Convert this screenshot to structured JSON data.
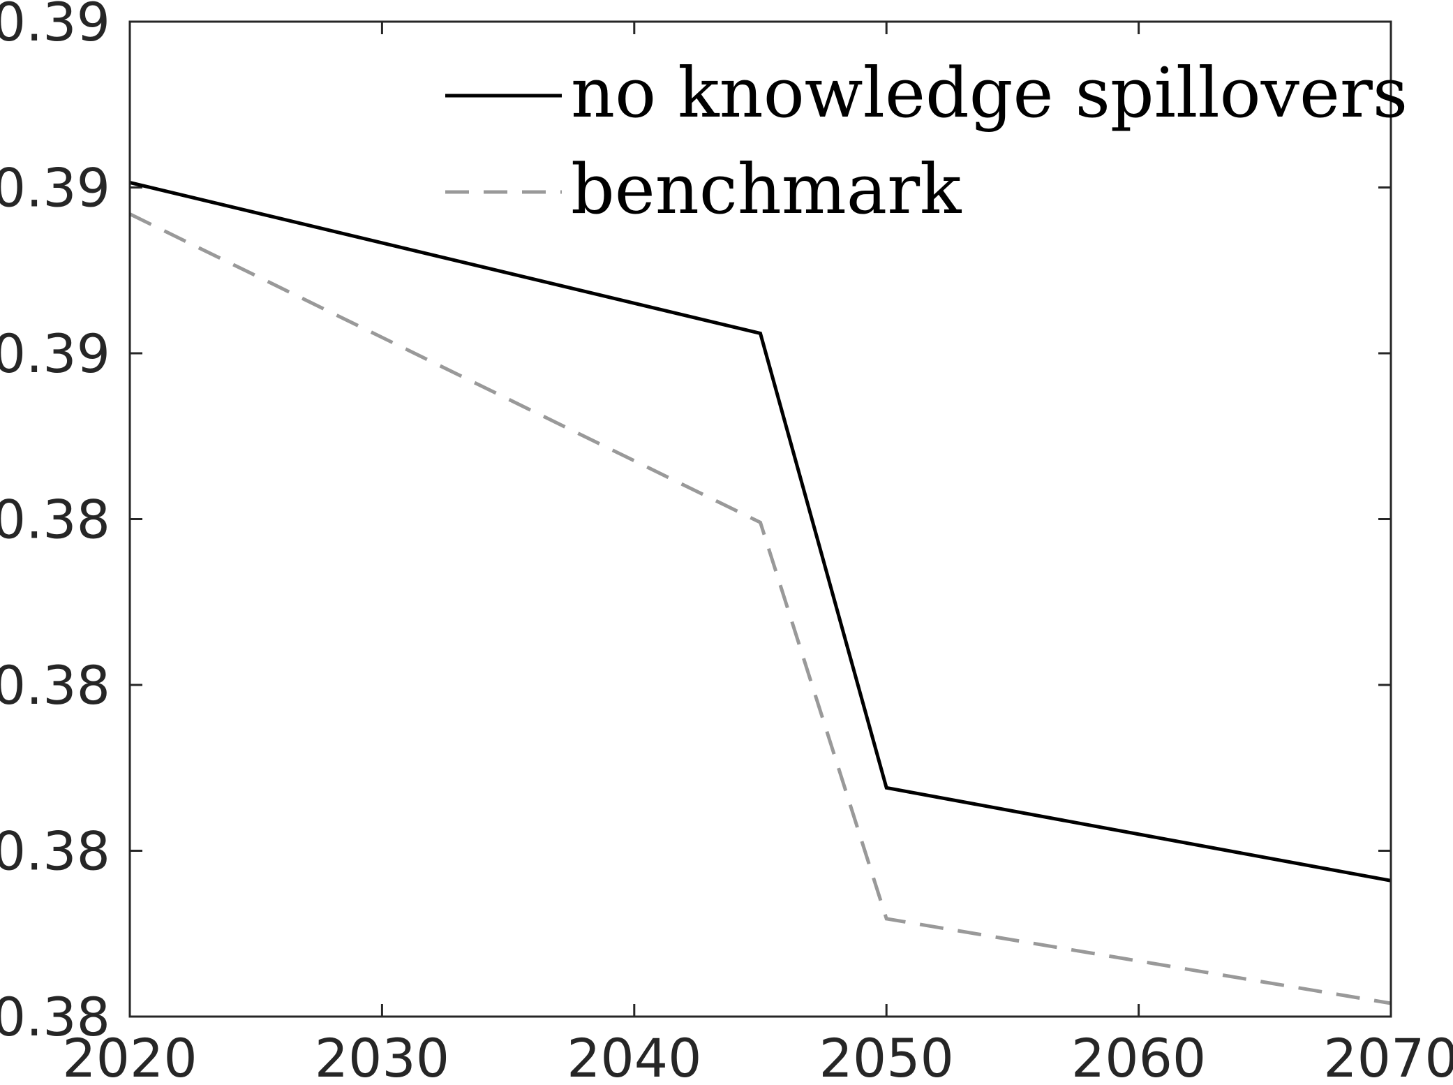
{
  "chart_data": {
    "type": "line",
    "title": "",
    "xlabel": "",
    "ylabel": "",
    "xlim": [
      2020,
      2070
    ],
    "ylim": [
      0,
      6
    ],
    "x_ticks": [
      {
        "value": 2020,
        "label": "2020"
      },
      {
        "value": 2030,
        "label": "2030"
      },
      {
        "value": 2040,
        "label": "2040"
      },
      {
        "value": 2050,
        "label": "2050"
      },
      {
        "value": 2060,
        "label": "2060"
      },
      {
        "value": 2070,
        "label": "2070"
      }
    ],
    "y_ticks": [
      {
        "value": 0,
        "label": "0.38"
      },
      {
        "value": 1,
        "label": "0.38"
      },
      {
        "value": 2,
        "label": "0.38"
      },
      {
        "value": 3,
        "label": "0.38"
      },
      {
        "value": 4,
        "label": "0.39"
      },
      {
        "value": 5,
        "label": "0.39"
      },
      {
        "value": 6,
        "label": "0.39"
      }
    ],
    "grid": false,
    "legend_position": "top-right",
    "series": [
      {
        "name": "no knowledge spillovers",
        "color": "#000000",
        "dash": "solid",
        "x": [
          2020,
          2045,
          2050,
          2070
        ],
        "y": [
          5.03,
          4.12,
          1.38,
          0.82
        ]
      },
      {
        "name": "benchmark",
        "color": "#999999",
        "dash": "dashed",
        "x": [
          2020,
          2045,
          2050,
          2070
        ],
        "y": [
          4.84,
          2.98,
          0.59,
          0.08
        ]
      }
    ]
  }
}
